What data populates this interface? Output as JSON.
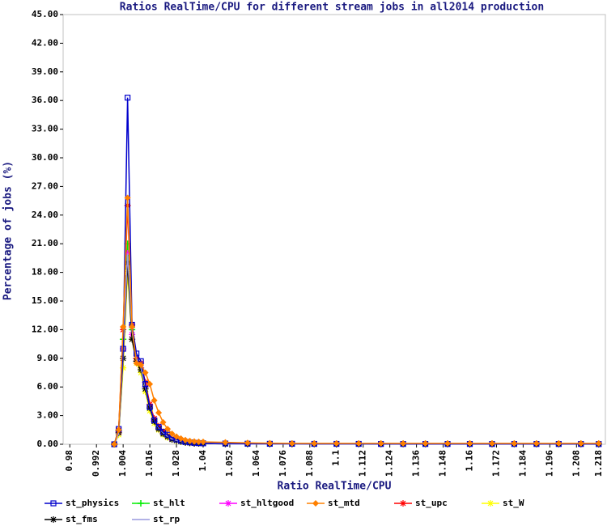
{
  "chart_data": {
    "type": "line",
    "title": "Ratios RealTime/CPU for different stream jobs in all2014 production",
    "x_label": "Ratio RealTime/CPU",
    "y_label": "Percentage of jobs (%)",
    "xlim": [
      0.977,
      1.221
    ],
    "ylim": [
      0,
      45
    ],
    "xticks": [
      0.98,
      0.992,
      1.004,
      1.016,
      1.028,
      1.04,
      1.052,
      1.064,
      1.076,
      1.088,
      1.1,
      1.112,
      1.124,
      1.136,
      1.148,
      1.16,
      1.172,
      1.184,
      1.196,
      1.208,
      1.218
    ],
    "yticks": [
      {
        "value": 0,
        "label": "0.00"
      },
      {
        "value": 3,
        "label": "3.00"
      },
      {
        "value": 6,
        "label": "6.00"
      },
      {
        "value": 9,
        "label": "9.00"
      },
      {
        "value": 12,
        "label": "12.00"
      },
      {
        "value": 15,
        "label": "15.00"
      },
      {
        "value": 18,
        "label": "18.00"
      },
      {
        "value": 21,
        "label": "21.00"
      },
      {
        "value": 24,
        "label": "24.00"
      },
      {
        "value": 27,
        "label": "27.00"
      },
      {
        "value": 30,
        "label": "30.00"
      },
      {
        "value": 33,
        "label": "33.00"
      },
      {
        "value": 36,
        "label": "36.00"
      },
      {
        "value": 39,
        "label": "39.00"
      },
      {
        "value": 42,
        "label": "42.00"
      },
      {
        "value": 45,
        "label": "45.00"
      }
    ],
    "x": [
      1.0,
      1.002,
      1.004,
      1.006,
      1.008,
      1.01,
      1.012,
      1.014,
      1.016,
      1.018,
      1.02,
      1.022,
      1.024,
      1.026,
      1.028,
      1.03,
      1.032,
      1.034,
      1.036,
      1.038,
      1.04,
      1.05,
      1.06,
      1.07,
      1.08,
      1.09,
      1.1,
      1.11,
      1.12,
      1.13,
      1.14,
      1.15,
      1.16,
      1.17,
      1.18,
      1.19,
      1.2,
      1.21,
      1.218
    ],
    "series": [
      {
        "name": "st_physics",
        "color": "#0000cc",
        "marker": "square",
        "values": [
          0,
          1.6,
          10,
          36.3,
          12.5,
          9.5,
          8.7,
          6.3,
          3.9,
          2.5,
          1.8,
          1.3,
          1.0,
          0.7,
          0.5,
          0.35,
          0.25,
          0.2,
          0.15,
          0.12,
          0.1,
          0.08,
          0.06,
          0.05,
          0.05,
          0.04,
          0.04,
          0.04,
          0.03,
          0.03,
          0.03,
          0.03,
          0.03,
          0.03,
          0.03,
          0.03,
          0.03,
          0.03,
          0.02
        ]
      },
      {
        "name": "st_hlt",
        "color": "#00ee00",
        "marker": "plus",
        "values": [
          0,
          1.4,
          11,
          21,
          12,
          9,
          8,
          6,
          4,
          2.6,
          1.8,
          1.3,
          0.9,
          0.6,
          0.4,
          0.3,
          0.2,
          0.15,
          0.12,
          0.1,
          0.1,
          0.05,
          0.05,
          0.05,
          0.05,
          0.05,
          0.05,
          0.05,
          0.05,
          0.05,
          0.05,
          0.05,
          0.05,
          0.05,
          0.05,
          0.05,
          0.05,
          0.05,
          0.05
        ]
      },
      {
        "name": "st_hltgood",
        "color": "#ff00ff",
        "marker": "star",
        "values": [
          0,
          1.3,
          10,
          20,
          11.5,
          9,
          8,
          6,
          4,
          2.5,
          1.7,
          1.2,
          0.8,
          0.6,
          0.4,
          0.3,
          0.2,
          0.15,
          0.1,
          0.1,
          0.1,
          0.04,
          0.04,
          0.04,
          0.04,
          0.04,
          0.04,
          0.04,
          0.04,
          0.04,
          0.04,
          0.04,
          0.04,
          0.04,
          0.04,
          0.04,
          0.04,
          0.04,
          0.04
        ]
      },
      {
        "name": "st_mtd",
        "color": "#ff8000",
        "marker": "diamond",
        "values": [
          0,
          1.5,
          12.3,
          25.8,
          12.3,
          8.5,
          8.3,
          7.5,
          6.3,
          4.6,
          3.3,
          2.3,
          1.6,
          1.1,
          0.8,
          0.6,
          0.45,
          0.35,
          0.3,
          0.27,
          0.25,
          0.2,
          0.15,
          0.12,
          0.1,
          0.1,
          0.1,
          0.1,
          0.1,
          0.1,
          0.1,
          0.1,
          0.1,
          0.1,
          0.1,
          0.1,
          0.1,
          0.1,
          0.1
        ]
      },
      {
        "name": "st_upc",
        "color": "#ff0000",
        "marker": "star",
        "values": [
          0,
          1.5,
          12,
          25,
          12.5,
          9,
          8.5,
          6.5,
          4.2,
          2.7,
          1.9,
          1.3,
          0.9,
          0.6,
          0.4,
          0.3,
          0.2,
          0.15,
          0.12,
          0.1,
          0.1,
          0.05,
          0.05,
          0.05,
          0.05,
          0.05,
          0.05,
          0.05,
          0.05,
          0.05,
          0.05,
          0.05,
          0.05,
          0.05,
          0.05,
          0.05,
          0.05,
          0.05,
          0.05
        ]
      },
      {
        "name": "st_W",
        "color": "#ffff00",
        "marker": "star",
        "values": [
          0,
          1,
          8,
          18,
          11,
          8.5,
          7.5,
          5.5,
          3.5,
          2.2,
          1.5,
          1,
          0.7,
          0.5,
          0.35,
          0.25,
          0.2,
          0.15,
          0.1,
          0.1,
          0.1,
          0.03,
          0.03,
          0.03,
          0.03,
          0.03,
          0.03,
          0.03,
          0.03,
          0.03,
          0.03,
          0.03,
          0.03,
          0.03,
          0.03,
          0.03,
          0.03,
          0.03,
          0.03
        ]
      },
      {
        "name": "st_fms",
        "color": "#000000",
        "marker": "star",
        "values": [
          0,
          1.2,
          9,
          19,
          11,
          8.7,
          7.8,
          5.8,
          3.8,
          2.4,
          1.6,
          1.1,
          0.8,
          0.5,
          0.4,
          0.3,
          0.2,
          0.15,
          0.1,
          0.1,
          0.1,
          0.03,
          0.03,
          0.03,
          0.03,
          0.03,
          0.03,
          0.03,
          0.03,
          0.03,
          0.03,
          0.03,
          0.03,
          0.03,
          0.03,
          0.03,
          0.03,
          0.03,
          0.03
        ]
      },
      {
        "name": "st_rp",
        "color": "#9999dd",
        "marker": "none",
        "values": [
          0,
          1.1,
          9.5,
          20,
          11.8,
          9,
          8,
          6,
          4,
          2.5,
          1.7,
          1.2,
          0.8,
          0.55,
          0.4,
          0.3,
          0.2,
          0.15,
          0.1,
          0.1,
          0.1,
          0.02,
          0.02,
          0.02,
          0.02,
          0.02,
          0.02,
          0.02,
          0.02,
          0.02,
          0.02,
          0.02,
          0.02,
          0.02,
          0.02,
          0.02,
          0.02,
          0.02,
          0.02
        ]
      }
    ]
  }
}
